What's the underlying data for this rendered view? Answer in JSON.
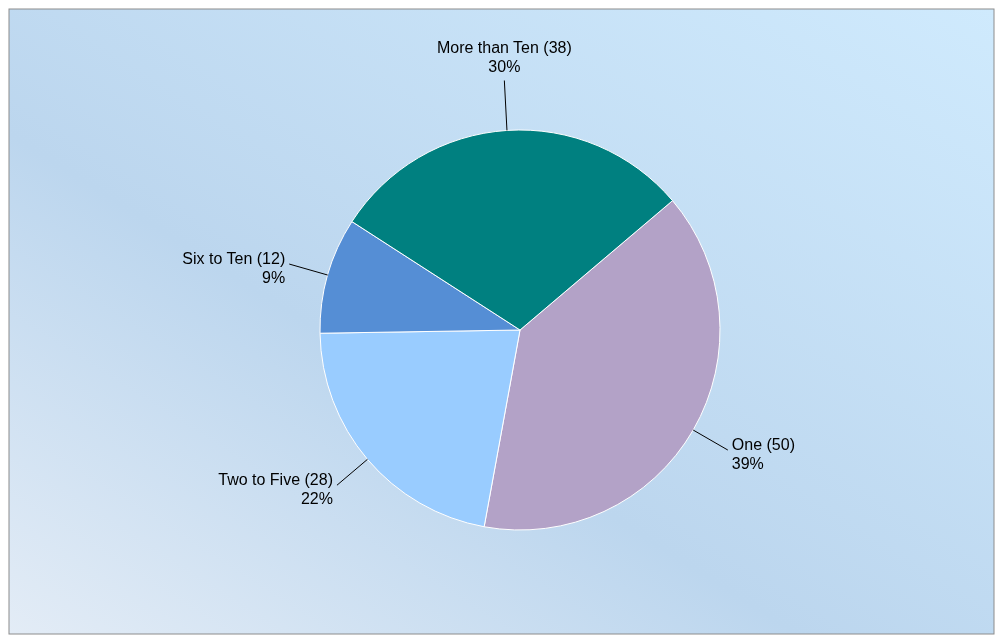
{
  "chart_data": {
    "type": "pie",
    "categories": [
      "One",
      "Two to Five",
      "Six to Ten",
      "More than Ten"
    ],
    "values": [
      50,
      28,
      12,
      38
    ],
    "colors": [
      "#b3a2c7",
      "#99ccff",
      "#558ed5",
      "#008080"
    ],
    "value_labels": [
      "(50)\n39%",
      "(28)\n22%",
      "(12)\n9%",
      "(38)\n30%"
    ],
    "legend": false
  }
}
